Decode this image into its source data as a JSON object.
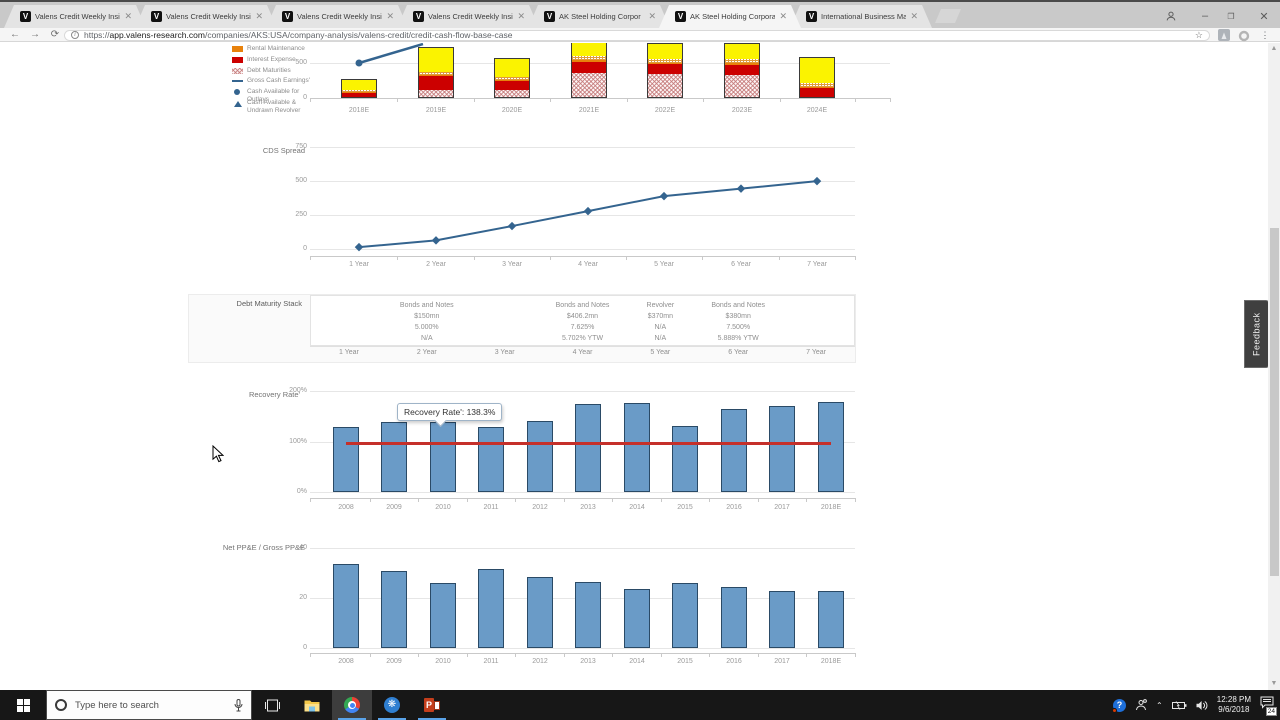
{
  "browser": {
    "tabs": [
      {
        "title": "Valens Credit Weekly Insi",
        "favicon": "V",
        "active": false
      },
      {
        "title": "Valens Credit Weekly Insi",
        "favicon": "V",
        "active": false
      },
      {
        "title": "Valens Credit Weekly Insi",
        "favicon": "V",
        "active": false
      },
      {
        "title": "Valens Credit Weekly Insi",
        "favicon": "V",
        "active": false
      },
      {
        "title": "AK Steel Holding Corpor",
        "favicon": "V",
        "active": false
      },
      {
        "title": "AK Steel Holding Corpora",
        "favicon": "V",
        "active": true
      },
      {
        "title": "International Business Ma",
        "favicon": "V",
        "active": false
      }
    ],
    "close_glyph": "✕",
    "url": {
      "protocol": "https://",
      "domain": "app.valens-research.com",
      "path": "/companies/AKS:USA/company-analysis/valens-credit/credit-cash-flow-base-case"
    }
  },
  "page": {
    "feedback_label": "Feedback"
  },
  "colors": {
    "bar_fill": "#6a9bc7",
    "bar_border": "#24455f",
    "line_blue": "#34648f",
    "reference_red": "#c5302a",
    "seg_red": "#cc0000",
    "seg_orange": "#e8820c",
    "seg_yellow": "#fbf300"
  },
  "chart_data": [
    {
      "id": "credit-cash-flow-forecast",
      "type": "bar",
      "stacked": true,
      "note": "top of chart clipped by viewport scroll position",
      "categories": [
        "2018E",
        "2019E",
        "2020E",
        "2021E",
        "2022E",
        "2023E",
        "2024E"
      ],
      "series": [
        {
          "name": "Debt Maturities",
          "style": "pink-crosshatch",
          "values": [
            0,
            108,
            108,
            358,
            344,
            330,
            0
          ]
        },
        {
          "name": "Interest Expense",
          "style": "solid-red",
          "values": [
            71,
            198,
            133,
            160,
            142,
            147,
            132
          ]
        },
        {
          "name": "Rental Maintenance",
          "style": "solid-orange",
          "values": [
            14,
            14,
            19,
            28,
            24,
            24,
            24
          ]
        },
        {
          "name": "unlabeled-dotted-band",
          "style": "orange-dotted",
          "values": [
            33,
            48,
            38,
            57,
            51,
            57,
            61
          ]
        },
        {
          "name": "unlabeled-yellow-band",
          "style": "solid-yellow",
          "values": [
            155,
            354,
            273,
            240,
            230,
            235,
            364
          ]
        }
      ],
      "point_series": {
        "name": "Cash Available for Outlays",
        "points": [
          {
            "x": "2018E",
            "y": 500
          }
        ]
      },
      "line_series": {
        "name": "Gross Cash Earnings'",
        "visible_segment": [
          [
            "2018E",
            500
          ],
          [
            "2019E",
            770
          ]
        ]
      },
      "yticks": [
        0,
        500
      ],
      "legend": [
        "Rental Maintenance",
        "Interest Expense",
        "Debt Maturities",
        "Gross Cash Earnings'",
        "Cash Available for Outlays",
        "Cash Available & Undrawn Revolver"
      ]
    },
    {
      "id": "cds-spread",
      "type": "line",
      "title": "CDS Spread",
      "categories": [
        "1 Year",
        "2 Year",
        "3 Year",
        "4 Year",
        "5 Year",
        "6 Year",
        "7 Year"
      ],
      "values": [
        10,
        60,
        165,
        275,
        385,
        440,
        495
      ],
      "yticks": [
        0,
        250,
        500,
        750
      ],
      "ylim": [
        0,
        750
      ]
    },
    {
      "id": "debt-maturity-stack",
      "type": "table",
      "title": "Debt Maturity Stack",
      "columns": [
        "1 Year",
        "2 Year",
        "3 Year",
        "4 Year",
        "5 Year",
        "6 Year",
        "7 Year"
      ],
      "entries": [
        {
          "column": "2 Year",
          "instrument": "Bonds and Notes",
          "amount": "$150mn",
          "coupon": "5.000%",
          "ytw": "N/A"
        },
        {
          "column": "4 Year",
          "instrument": "Bonds and Notes",
          "amount": "$406.2mn",
          "coupon": "7.625%",
          "ytw": "5.702% YTW"
        },
        {
          "column": "5 Year",
          "instrument": "Revolver",
          "amount": "$370mn",
          "coupon": "N/A",
          "ytw": "N/A"
        },
        {
          "column": "6 Year",
          "instrument": "Bonds and Notes",
          "amount": "$380mn",
          "coupon": "7.500%",
          "ytw": "5.888% YTW"
        }
      ]
    },
    {
      "id": "recovery-rate",
      "type": "bar",
      "title": "Recovery Rate'",
      "categories": [
        "2008",
        "2009",
        "2010",
        "2011",
        "2012",
        "2013",
        "2014",
        "2015",
        "2016",
        "2017",
        "2018E"
      ],
      "values": [
        128,
        139,
        138.3,
        128,
        140,
        175,
        176,
        130,
        164,
        171,
        179
      ],
      "yticks": [
        "0%",
        "100%",
        "200%"
      ],
      "ylim": [
        0,
        200
      ],
      "reference_line": {
        "y": 100
      },
      "tooltip": {
        "text": "Recovery Rate': 138.3%",
        "target": "2010"
      }
    },
    {
      "id": "net-ppe-gross-ppe",
      "type": "bar",
      "title": "Net PP&E / Gross PP&E",
      "categories": [
        "2008",
        "2009",
        "2010",
        "2011",
        "2012",
        "2013",
        "2014",
        "2015",
        "2016",
        "2017",
        "2018E"
      ],
      "values": [
        33.5,
        31,
        26,
        31.5,
        28.5,
        26.5,
        23.5,
        26,
        24.5,
        23,
        23
      ],
      "yticks": [
        0,
        20,
        40
      ],
      "ylim": [
        0,
        40
      ]
    }
  ],
  "taskbar": {
    "search_placeholder": "Type here to search",
    "time": "12:28 PM",
    "date": "9/6/2018",
    "notification_count": "24"
  }
}
